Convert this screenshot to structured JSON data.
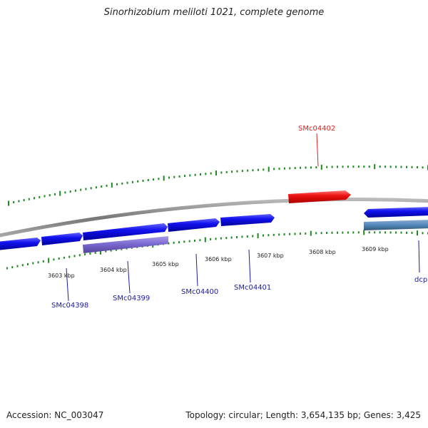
{
  "title": "Sinorhizobium meliloti 1021, complete genome",
  "footer": {
    "accession": "Accession: NC_003047",
    "summary": "Topology: circular; Length: 3,654,135 bp; Genes: 3,425"
  },
  "colors": {
    "background": "#ffffff",
    "backbone": "#888888",
    "tick": "#1f8a1f",
    "gene_forward": "#2222dd",
    "gene_highlight": "#ee2222",
    "gene_purple": "#7766cc",
    "gene_steelblue": "#5588bb",
    "label_blue": "#1a1aaa",
    "label_red": "#dd2222"
  },
  "position_labels": [
    "3603 kbp",
    "3604 kbp",
    "3605 kbp",
    "3606 kbp",
    "3607 kbp",
    "3608 kbp",
    "3609 kbp"
  ],
  "gene_labels": [
    {
      "name": "SMc04398",
      "color": "blue"
    },
    {
      "name": "SMc04399",
      "color": "blue"
    },
    {
      "name": "SMc04400",
      "color": "blue"
    },
    {
      "name": "SMc04401",
      "color": "blue"
    },
    {
      "name": "SMc04402",
      "color": "red"
    },
    {
      "name": "dcp",
      "color": "blue"
    }
  ]
}
